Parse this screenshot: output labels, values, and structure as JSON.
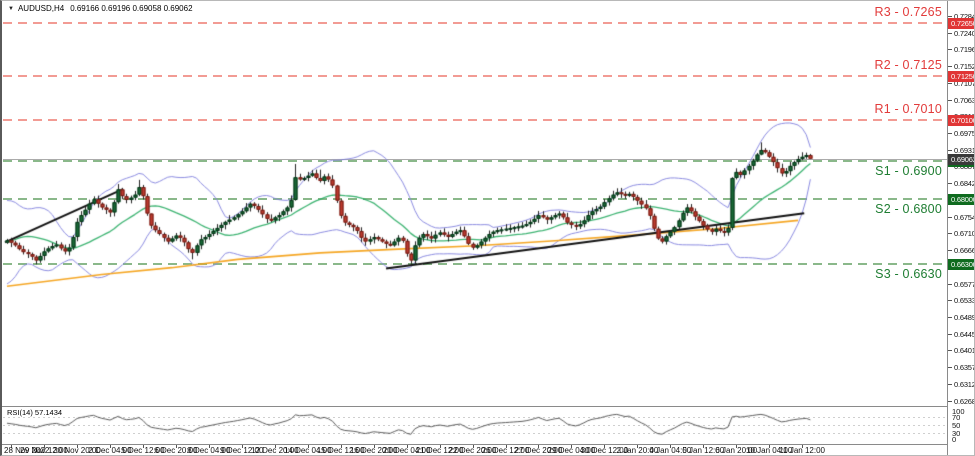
{
  "window": {
    "dropdown_icon": "▼",
    "symbol_period": "AUDUSD,H4",
    "ohlc_line": "0.69166 0.69196 0.69058 0.69062"
  },
  "colors": {
    "bull": "#186b36",
    "bull_border": "#063318",
    "bear": "#c03a2e",
    "bear_border": "#6e1d15",
    "wick": "#222222",
    "bollinger": "#8a8ae0",
    "sma_mid": "#3cb371",
    "sma_long": "#f5a623",
    "trendline": "#111111",
    "rsi_line": "#5a5a5a",
    "resistance_text": "#e23b3b",
    "resistance_dash": "#f29b94",
    "resistance_badge": "#e03535",
    "support_text": "#1e7d32",
    "support_dash": "#8ab88a",
    "support_badge": "#0f6b1f",
    "current_badge": "#3a3a3a"
  },
  "chart_data": {
    "type": "candlestick",
    "symbol": "AUDUSD",
    "timeframe": "H4",
    "title": "AUDUSD,H4",
    "last_ohlc": {
      "open": 0.69166,
      "high": 0.69196,
      "low": 0.69058,
      "close": 0.69062
    },
    "current_price": {
      "value": 0.69062,
      "badge": "0.69062"
    },
    "y_axis": {
      "top_price": 0.7284,
      "ticks": [
        "0.72840",
        "0.72400",
        "0.71960",
        "0.71520",
        "0.71070",
        "0.70630",
        "0.70190",
        "0.69750",
        "0.69310",
        "0.68870",
        "0.68420",
        "0.67980",
        "0.67540",
        "0.67100",
        "0.66660",
        "0.66220",
        "0.65770",
        "0.65330",
        "0.64890",
        "0.64450",
        "0.64010",
        "0.63570",
        "0.63120",
        "0.62680"
      ]
    },
    "x_axis": {
      "labels": [
        "28 Nov 2022",
        "29 Nov 12:00",
        "30 Nov 20:00",
        "2 Dec 04:00",
        "5 Dec 12:00",
        "6 Dec 20:00",
        "8 Dec 04:00",
        "9 Dec 12:00",
        "12 Dec 20:00",
        "14 Dec 04:00",
        "15 Dec 12:00",
        "16 Dec 20:00",
        "20 Dec 04:00",
        "21 Dec 12:00",
        "22 Dec 20:00",
        "26 Dec 12:00",
        "27 Dec 20:00",
        "29 Dec 04:00",
        "30 Dec 12:00",
        "2 Jan 20:00",
        "4 Jan 04:00",
        "5 Jan 12:00",
        "6 Jan 20:00",
        "10 Jan 04:00",
        "11 Jan 12:00"
      ]
    },
    "levels": [
      {
        "name": "R3",
        "label": "R3 - 0.7265",
        "price": 0.7265,
        "kind": "resistance",
        "badge": "0.72650"
      },
      {
        "name": "R2",
        "label": "R2 - 0.7125",
        "price": 0.7125,
        "kind": "resistance",
        "badge": "0.71250"
      },
      {
        "name": "R1",
        "label": "R1 - 0.7010",
        "price": 0.701,
        "kind": "resistance",
        "badge": "0.70100"
      },
      {
        "name": "S1",
        "label": "S1 - 0.6900",
        "price": 0.69,
        "kind": "support",
        "badge": "0.69000"
      },
      {
        "name": "S2",
        "label": "S2 - 0.6800",
        "price": 0.68,
        "kind": "support",
        "badge": "0.68000"
      },
      {
        "name": "S3",
        "label": "S3 - 0.6630",
        "price": 0.663,
        "kind": "support",
        "badge": "0.66300"
      }
    ],
    "pre_history_closes": [
      0.665,
      0.662,
      0.66,
      0.6585,
      0.6605,
      0.663,
      0.6655,
      0.668,
      0.67,
      0.672,
      0.674,
      0.676,
      0.6775,
      0.676,
      0.6742,
      0.6722,
      0.6702,
      0.6684,
      0.6668,
      0.6685
    ],
    "closes": [
      0.6692,
      0.6685,
      0.6678,
      0.6668,
      0.666,
      0.6655,
      0.6648,
      0.6638,
      0.665,
      0.6662,
      0.667,
      0.6676,
      0.668,
      0.667,
      0.6662,
      0.6672,
      0.67,
      0.674,
      0.6758,
      0.6772,
      0.6788,
      0.68,
      0.6788,
      0.6778,
      0.6772,
      0.6765,
      0.6792,
      0.6826,
      0.6808,
      0.6798,
      0.6804,
      0.6812,
      0.6832,
      0.6808,
      0.6762,
      0.673,
      0.6718,
      0.6708,
      0.6698,
      0.6688,
      0.6696,
      0.6704,
      0.6698,
      0.6686,
      0.6668,
      0.6658,
      0.6678,
      0.6694,
      0.67,
      0.6708,
      0.6716,
      0.6724,
      0.6732,
      0.674,
      0.6746,
      0.6752,
      0.676,
      0.6768,
      0.6778,
      0.6788,
      0.6782,
      0.6772,
      0.676,
      0.6748,
      0.6744,
      0.6752,
      0.6758,
      0.6768,
      0.6778,
      0.6798,
      0.6858,
      0.6852,
      0.6856,
      0.6862,
      0.6868,
      0.6856,
      0.6848,
      0.686,
      0.6852,
      0.6836,
      0.6796,
      0.6756,
      0.6738,
      0.6732,
      0.6726,
      0.6716,
      0.6698,
      0.6688,
      0.6694,
      0.67,
      0.6694,
      0.6688,
      0.6682,
      0.6678,
      0.6688,
      0.6698,
      0.669,
      0.6656,
      0.6638,
      0.6678,
      0.6698,
      0.6708,
      0.6702,
      0.6696,
      0.6706,
      0.6712,
      0.6706,
      0.67,
      0.6708,
      0.6714,
      0.6718,
      0.6702,
      0.6682,
      0.6672,
      0.6678,
      0.6688,
      0.6698,
      0.6708,
      0.6714,
      0.6718,
      0.672,
      0.6722,
      0.6724,
      0.6726,
      0.6728,
      0.673,
      0.6734,
      0.674,
      0.6748,
      0.6758,
      0.6752,
      0.6746,
      0.6752,
      0.6758,
      0.6762,
      0.6752,
      0.6738,
      0.6732,
      0.6728,
      0.6734,
      0.6744,
      0.6758,
      0.6768,
      0.6774,
      0.678,
      0.6792,
      0.6802,
      0.6812,
      0.6818,
      0.6814,
      0.681,
      0.6814,
      0.6806,
      0.6796,
      0.6786,
      0.6776,
      0.6756,
      0.6722,
      0.6696,
      0.6688,
      0.6702,
      0.6714,
      0.6726,
      0.6744,
      0.6764,
      0.6778,
      0.6768,
      0.6754,
      0.6742,
      0.673,
      0.672,
      0.6714,
      0.6722,
      0.6716,
      0.6712,
      0.6724,
      0.6856,
      0.6872,
      0.6864,
      0.6876,
      0.6888,
      0.6902,
      0.6918,
      0.693,
      0.6924,
      0.6912,
      0.6898,
      0.6882,
      0.6868,
      0.6874,
      0.6888,
      0.6898,
      0.6906,
      0.6912,
      0.69166,
      0.69062
    ],
    "wick_overrides": {
      "7": [
        0.6652,
        0.6628
      ],
      "27": [
        0.684,
        0.6788
      ],
      "32": [
        0.6851,
        0.6808
      ],
      "35": [
        0.6762,
        0.6722
      ],
      "45": [
        0.6672,
        0.6641
      ],
      "70": [
        0.6893,
        0.6796
      ],
      "76": [
        0.6878,
        0.6844
      ],
      "80": [
        0.6838,
        0.679
      ],
      "98": [
        0.666,
        0.6629
      ],
      "159": [
        0.6702,
        0.6683
      ],
      "171": [
        0.6724,
        0.6706
      ],
      "176": [
        0.6858,
        0.6718
      ],
      "183": [
        0.695,
        0.6916
      ],
      "195": [
        0.69196,
        0.69058
      ]
    },
    "overlays": {
      "bollinger": {
        "period": 20,
        "deviation": 2
      },
      "sma_long_polyline": [
        [
          0,
          0.657
        ],
        [
          23,
          0.6601
        ],
        [
          40,
          0.6619
        ],
        [
          56,
          0.6641
        ],
        [
          76,
          0.6658
        ],
        [
          95,
          0.6668
        ],
        [
          114,
          0.6677
        ],
        [
          133,
          0.669
        ],
        [
          152,
          0.6705
        ],
        [
          172,
          0.6722
        ],
        [
          192,
          0.6744
        ]
      ],
      "trendlines": [
        [
          [
            -0.5,
            0.6686
          ],
          [
            28,
            0.6826
          ]
        ],
        [
          [
            92,
            0.6617
          ],
          [
            193.5,
            0.6763
          ]
        ]
      ]
    },
    "rsi": {
      "period": 14,
      "label": "RSI(14) 57.1434",
      "value": 57.1434,
      "scale_labels": [
        "100",
        "70",
        "50",
        "30",
        "0"
      ],
      "scale_values": [
        100,
        70,
        50,
        30,
        0
      ],
      "guide_levels": [
        70,
        50,
        30
      ]
    }
  }
}
